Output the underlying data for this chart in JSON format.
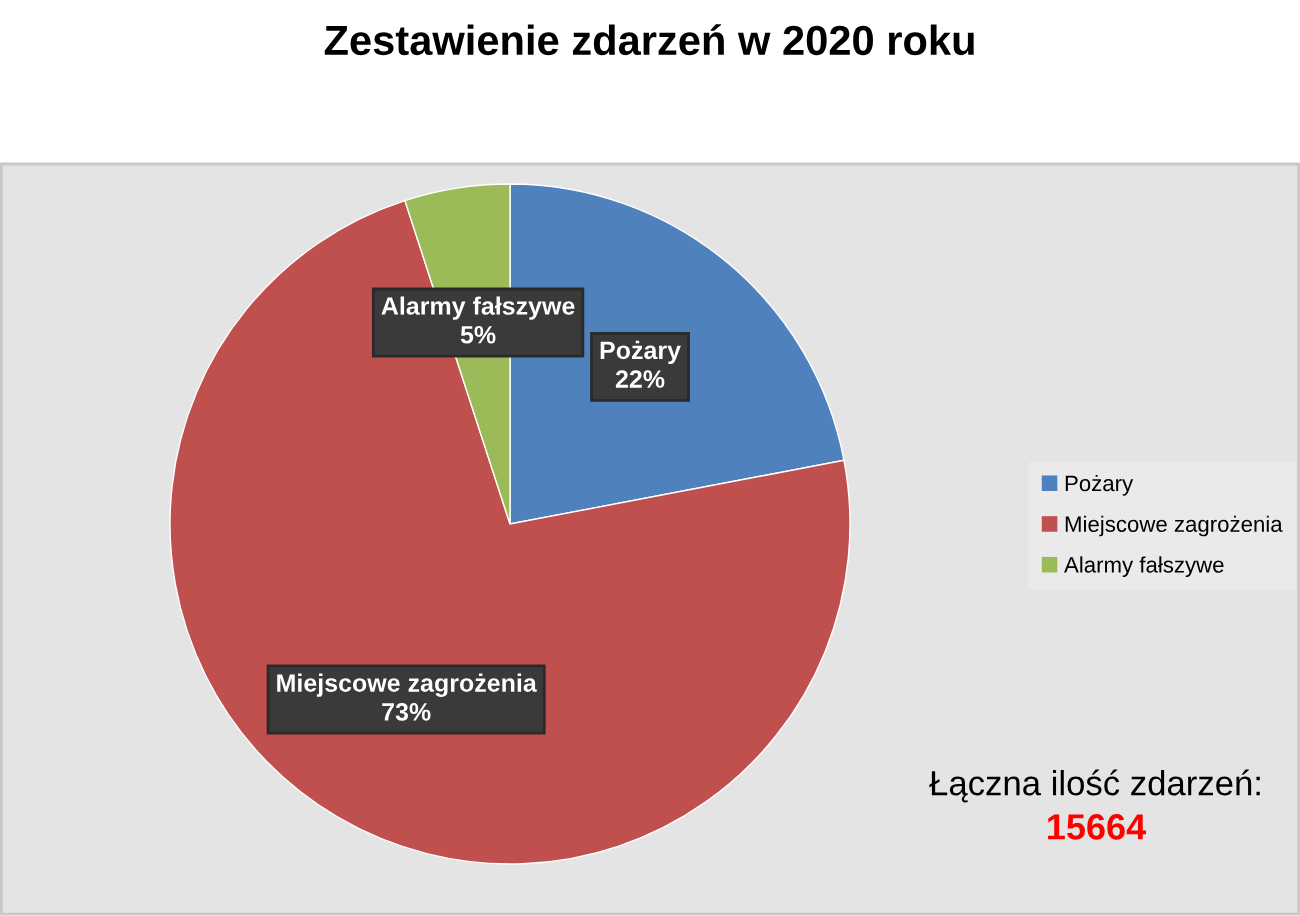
{
  "chart_data": {
    "type": "pie",
    "title": "Zestawienie zdarzeń w 2020 roku",
    "categories": [
      "Pożary",
      "Miejscowe zagrożenia",
      "Alarmy fałszywe"
    ],
    "values": [
      22,
      73,
      5
    ],
    "colors": [
      "#4f81bd",
      "#c0504d",
      "#9bbb59"
    ],
    "value_labels": [
      "22%",
      "73%",
      "5%"
    ],
    "legend": "right",
    "annotations": [
      "Łączna ilość zdarzeń:",
      "15664"
    ]
  }
}
